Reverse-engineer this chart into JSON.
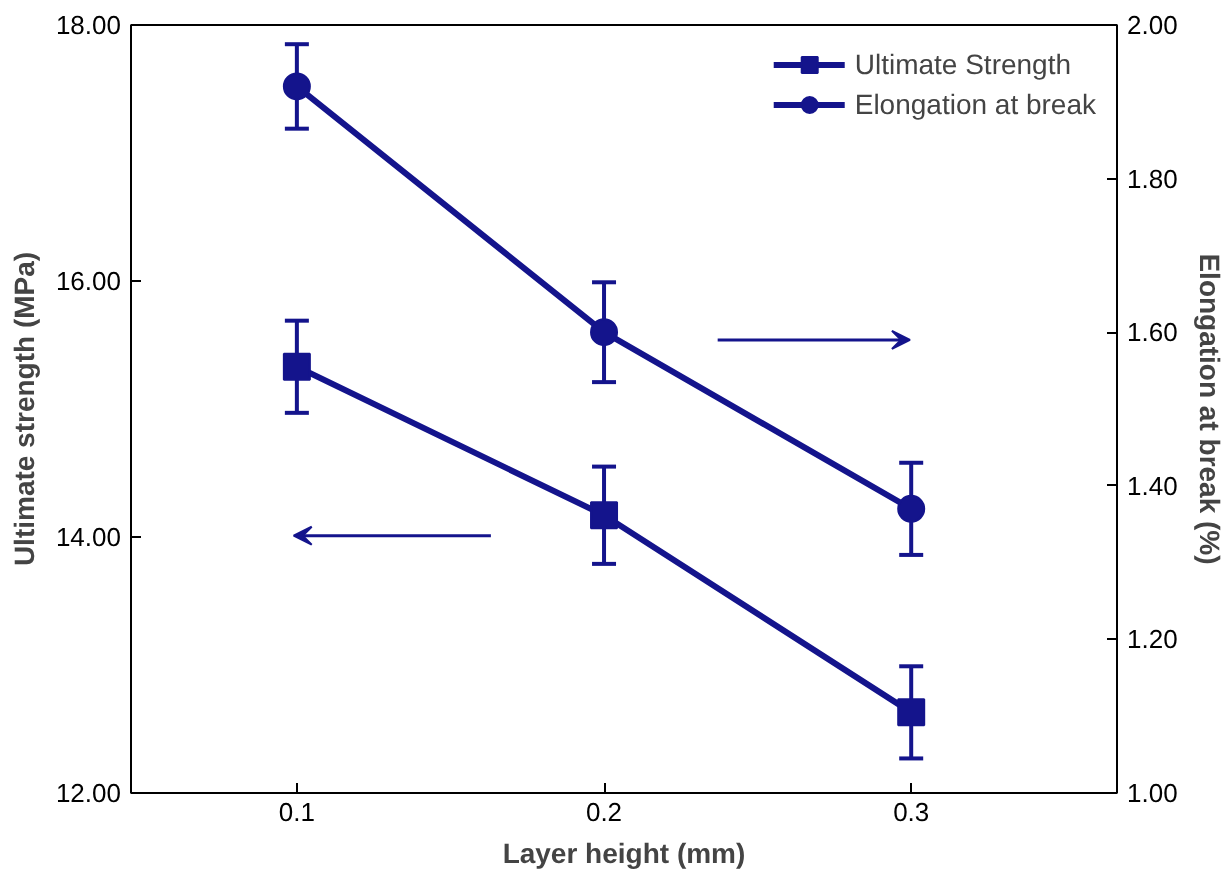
{
  "chart_data": {
    "type": "line",
    "xlabel": "Layer height (mm)",
    "ylabel": "Ultimate strength (MPa)",
    "y2label": "Elongation at break (%)",
    "x": [
      0.1,
      0.2,
      0.3
    ],
    "series": [
      {
        "name": "Ultimate Strength",
        "color": "#14148c",
        "values": [
          15.33,
          14.17,
          12.63
        ],
        "errors": [
          0.36,
          0.38,
          0.36
        ],
        "marker": "square"
      },
      {
        "name": "Elongation at break",
        "color": "#14148c",
        "values": [
          1.92,
          1.6,
          1.37
        ],
        "errors": [
          0.055,
          0.065,
          0.06
        ],
        "marker": "circle",
        "axis": "y2"
      }
    ],
    "xlim": [
      0.046,
      0.367
    ],
    "xticks": [
      0.1,
      0.2,
      0.3
    ],
    "ylim": [
      12,
      18
    ],
    "yticks": [
      {
        "value": 12,
        "label": "12.00"
      },
      {
        "value": 14,
        "label": "14.00"
      },
      {
        "value": 16,
        "label": "16.00"
      },
      {
        "value": 18,
        "label": "18.00"
      }
    ],
    "y2lim": [
      1,
      2
    ],
    "y2ticks": [
      {
        "value": 1,
        "label": "1.00"
      },
      {
        "value": 1.2,
        "label": "1.20"
      },
      {
        "value": 1.4,
        "label": "1.40"
      },
      {
        "value": 1.6,
        "label": "1.60"
      },
      {
        "value": 1.8,
        "label": "1.80"
      },
      {
        "value": 2,
        "label": "2.00"
      }
    ],
    "legend": "top right",
    "grid": false,
    "line_style": "solid"
  }
}
